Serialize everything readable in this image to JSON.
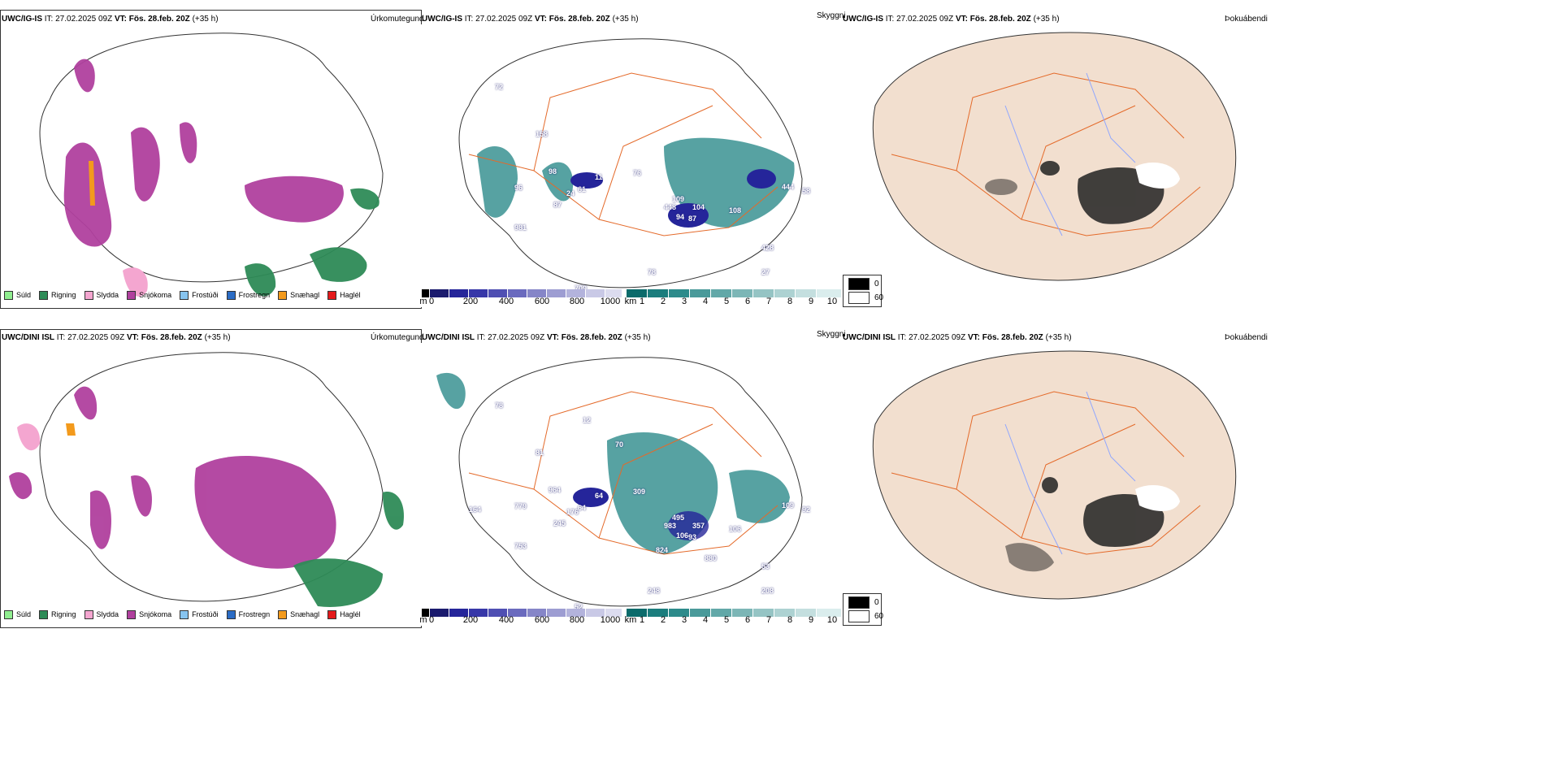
{
  "colors": {
    "precip": [
      "#90ee90",
      "#2e8b57",
      "#f4a6d0",
      "#b0409e",
      "#87c4ef",
      "#2b6cc4",
      "#f39a1c",
      "#e41a1c"
    ],
    "height_bar": [
      "#000000",
      "#1b1b6e",
      "#25259a",
      "#3737a8",
      "#4f4fb3",
      "#6a6abe",
      "#8686c8",
      "#9d9dd2",
      "#b3b3dc",
      "#c9c9e6",
      "#dcdcef"
    ],
    "cloud_bar": [
      "#0b6b6b",
      "#1b7d7d",
      "#2d8b8b",
      "#4a9a9a",
      "#62a8a8",
      "#7cb6b6",
      "#95c4c4",
      "#add2d2",
      "#c4dfdf",
      "#daeded"
    ],
    "land": "#f2dfcf",
    "roads": "#e46a2a",
    "rivers": "#8fa6ff"
  },
  "rows": [
    {
      "model": "UWC/IG-IS",
      "it_label": "IT:",
      "it": "27.02.2025 09Z",
      "vt_label": "VT:",
      "vt": "Fös. 28.feb. 20Z",
      "lead": "(+35 h)",
      "panel_precip_title": "Úrkomutegund",
      "panel_cloud_title": "Skyggni",
      "panel_fog_title": "Þokuábendi",
      "cloud_labels": [
        "72",
        "158",
        "98",
        "11",
        "24",
        "61",
        "76",
        "96",
        "87",
        "981",
        "109",
        "448",
        "104",
        "94",
        "87",
        "108",
        "78",
        "27",
        "444",
        "709",
        "428",
        "58"
      ]
    },
    {
      "model": "UWC/DINI ISL",
      "it_label": "IT:",
      "it": "27.02.2025 09Z",
      "vt_label": "VT:",
      "vt": "Fös. 28.feb. 20Z",
      "lead": "(+35 h)",
      "panel_precip_title": "Úrkomutegund",
      "panel_cloud_title": "Skyggni",
      "panel_fog_title": "Þokuábendi",
      "cloud_labels": [
        "78",
        "81",
        "964",
        "64",
        "176",
        "64",
        "309",
        "779",
        "245",
        "753",
        "495",
        "983",
        "357",
        "106",
        "93",
        "106",
        "248",
        "208",
        "109",
        "52",
        "53",
        "92",
        "164",
        "70",
        "12",
        "824",
        "880"
      ]
    }
  ],
  "precip_legend": [
    "Súld",
    "Rigning",
    "Slydda",
    "Snjókoma",
    "Frostúði",
    "Frostregn",
    "Snæhagl",
    "Haglél"
  ],
  "height_unit": "m",
  "height_ticks": [
    "0",
    "200",
    "400",
    "600",
    "800",
    "1000"
  ],
  "cloud_unit": "km",
  "cloud_ticks": [
    "1",
    "2",
    "3",
    "4",
    "5",
    "6",
    "7",
    "8",
    "9",
    "10"
  ],
  "fog_legend": [
    "0",
    "60"
  ]
}
